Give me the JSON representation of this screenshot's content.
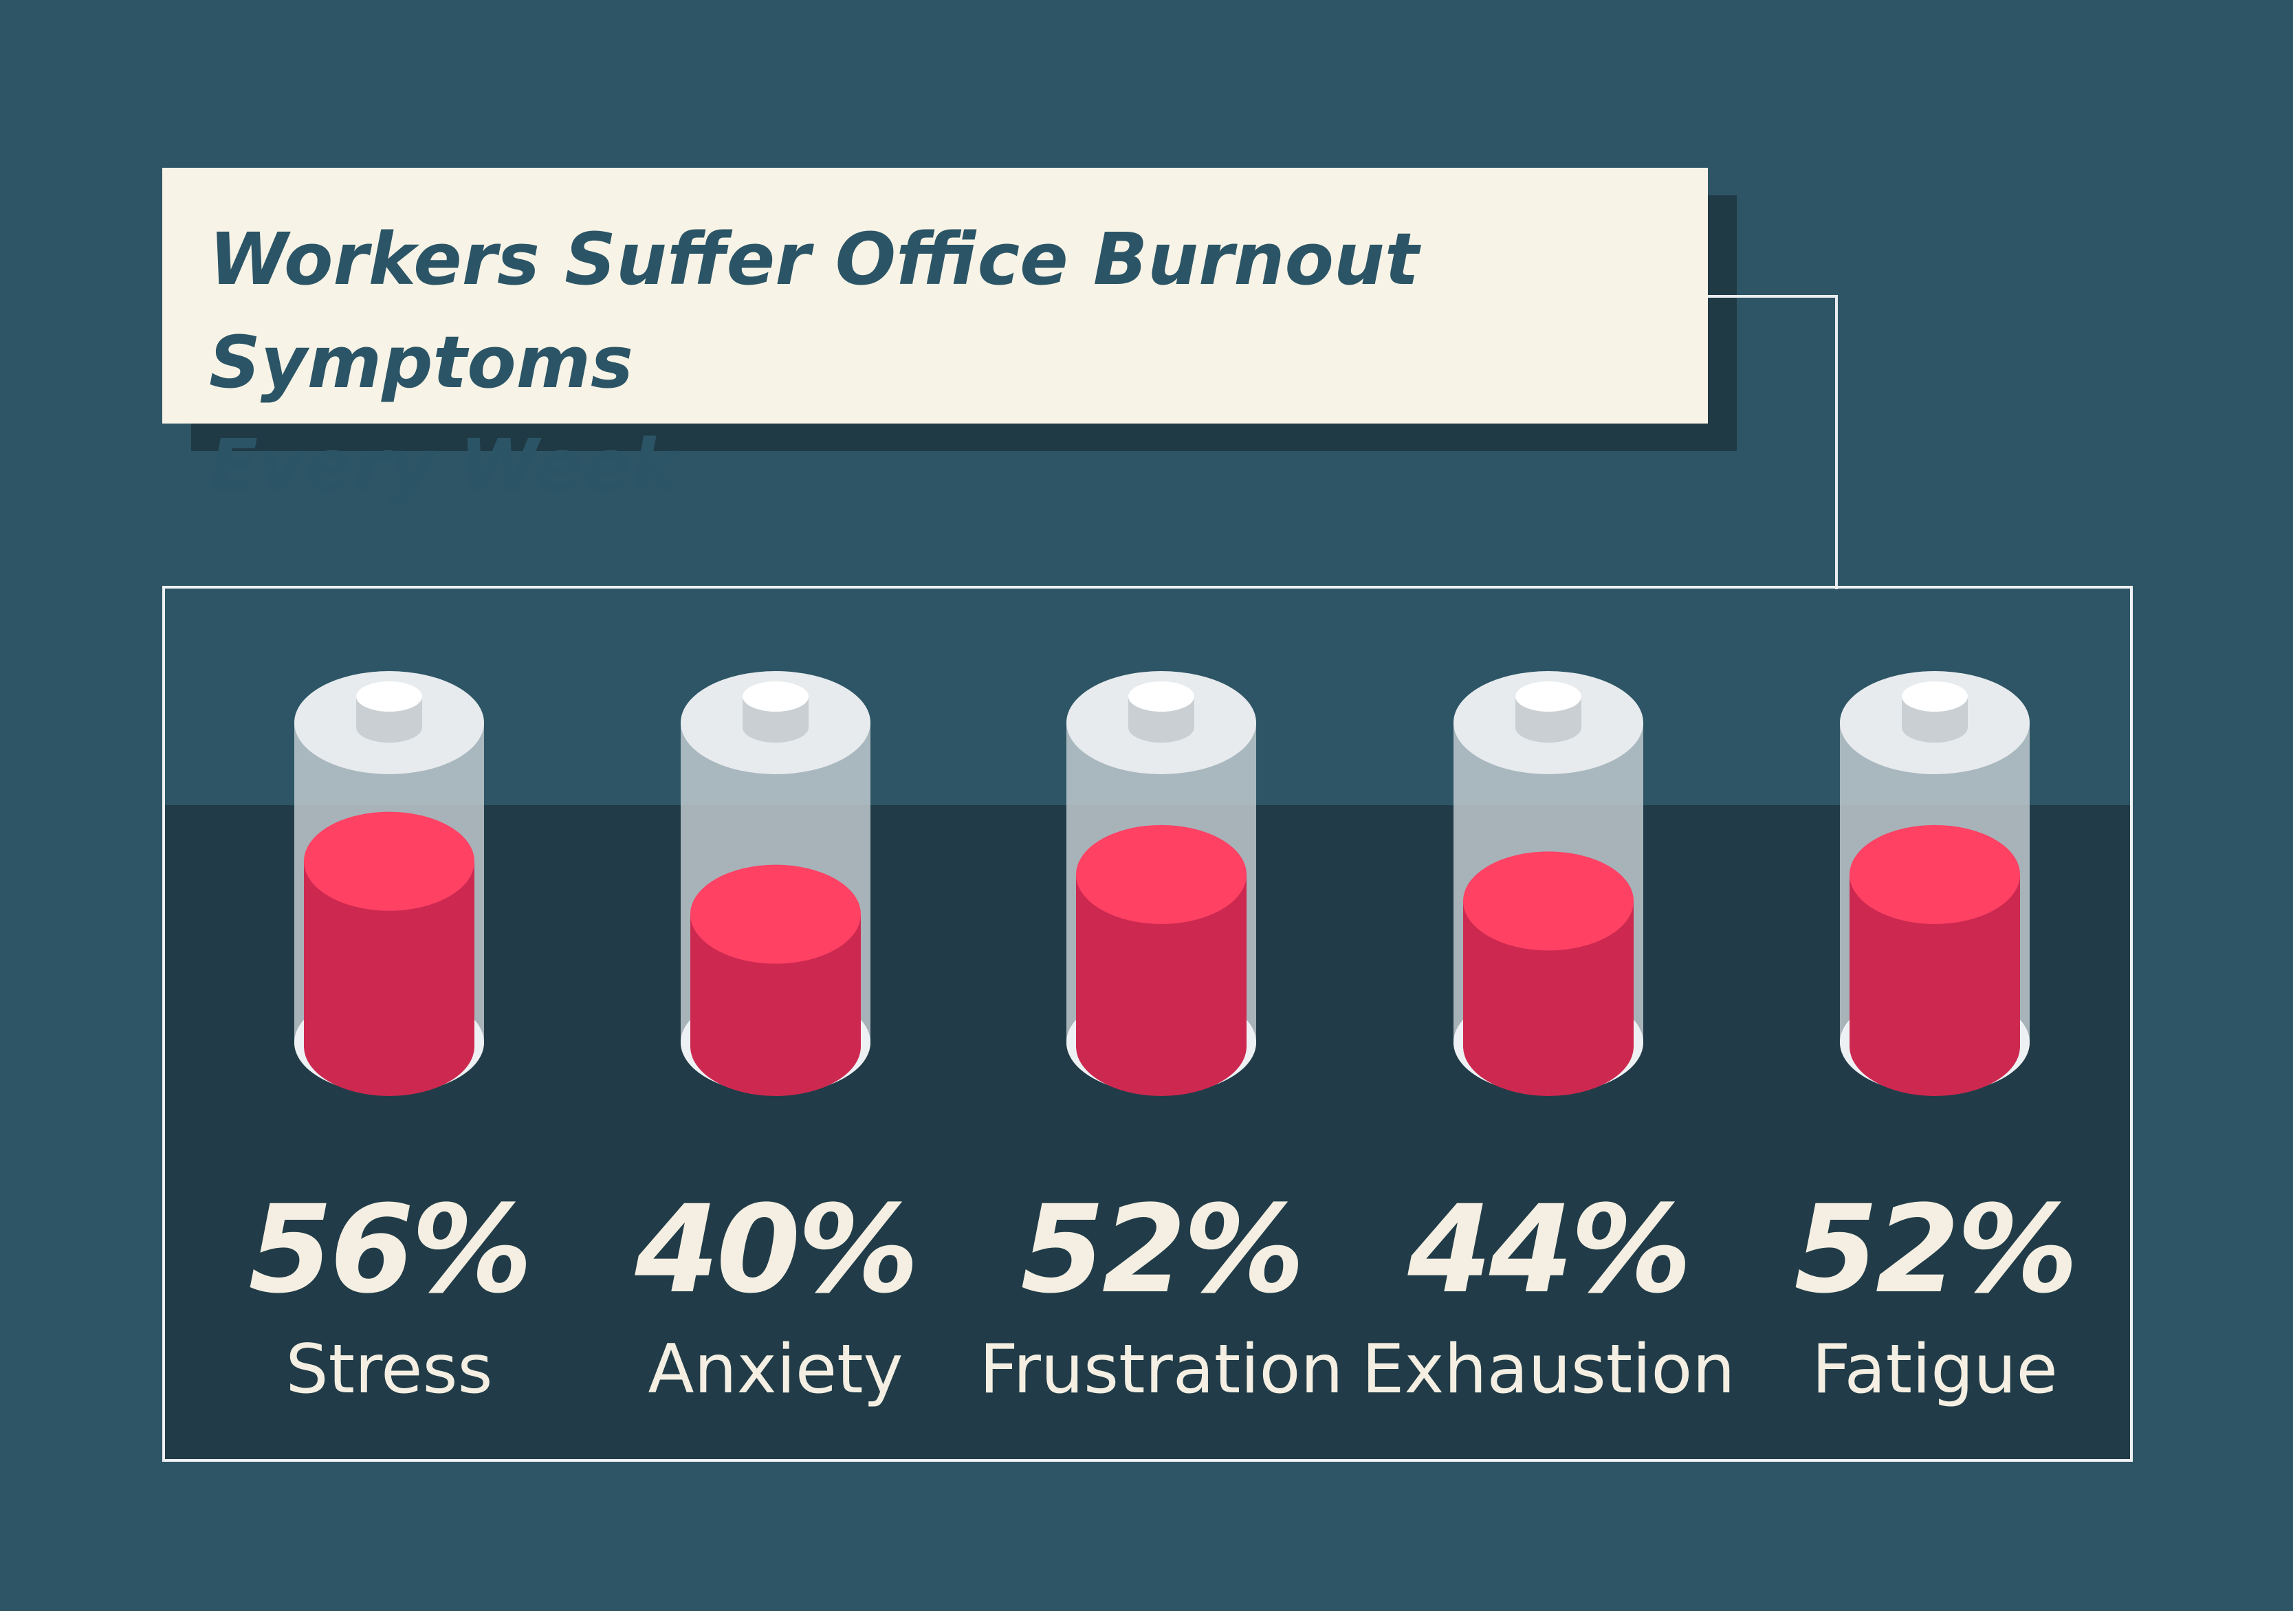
{
  "title": {
    "line1": "Workers Suffer Office Burnout Symptoms",
    "line2": "Every Week"
  },
  "colors": {
    "background": "#2d5565",
    "panel_dark": "#213c48",
    "title_box": "#f7f3e6",
    "title_text": "#2b5566",
    "liquid_top": "#ff4164",
    "liquid_side": "#cd2950",
    "glass": "#c4cdd2",
    "cap": "#e7ebee",
    "label_text": "#f4efe2"
  },
  "chart_data": {
    "type": "bar",
    "style": "battery-fill",
    "title": "Workers Suffer Office Burnout Symptoms Every Week",
    "categories": [
      "Stress",
      "Anxiety",
      "Frustration",
      "Exhaustion",
      "Fatigue"
    ],
    "values": [
      56,
      40,
      52,
      44,
      52
    ],
    "value_labels": [
      "56%",
      "40%",
      "52%",
      "44%",
      "52%"
    ],
    "unit": "%",
    "ylim": [
      0,
      100
    ],
    "grid": false,
    "legend": "none"
  }
}
